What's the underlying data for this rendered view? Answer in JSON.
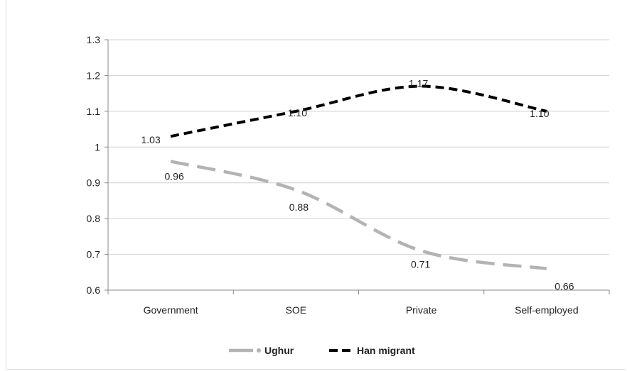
{
  "chart_data": {
    "type": "line",
    "title": "",
    "xlabel": "",
    "ylabel": "",
    "categories": [
      "Government",
      "SOE",
      "Private",
      "Self-employed"
    ],
    "ylim": [
      0.6,
      1.3
    ],
    "yticks": [
      "0.6",
      "0.7",
      "0.8",
      "0.9",
      "1",
      "1.1",
      "1.2",
      "1.3"
    ],
    "grid": true,
    "legend_position": "bottom",
    "series": [
      {
        "name": "Ughur",
        "values": [
          0.96,
          0.88,
          0.71,
          0.66
        ],
        "labels": [
          "0.96",
          "0.88",
          "0.71",
          "0.66"
        ],
        "color": "#b3b3b3",
        "dash": "long-dash"
      },
      {
        "name": "Han migrant",
        "values": [
          1.03,
          1.1,
          1.17,
          1.1
        ],
        "labels": [
          "1.03",
          "1.10",
          "1.17",
          "1.10"
        ],
        "color": "#000000",
        "dash": "dash"
      }
    ]
  }
}
